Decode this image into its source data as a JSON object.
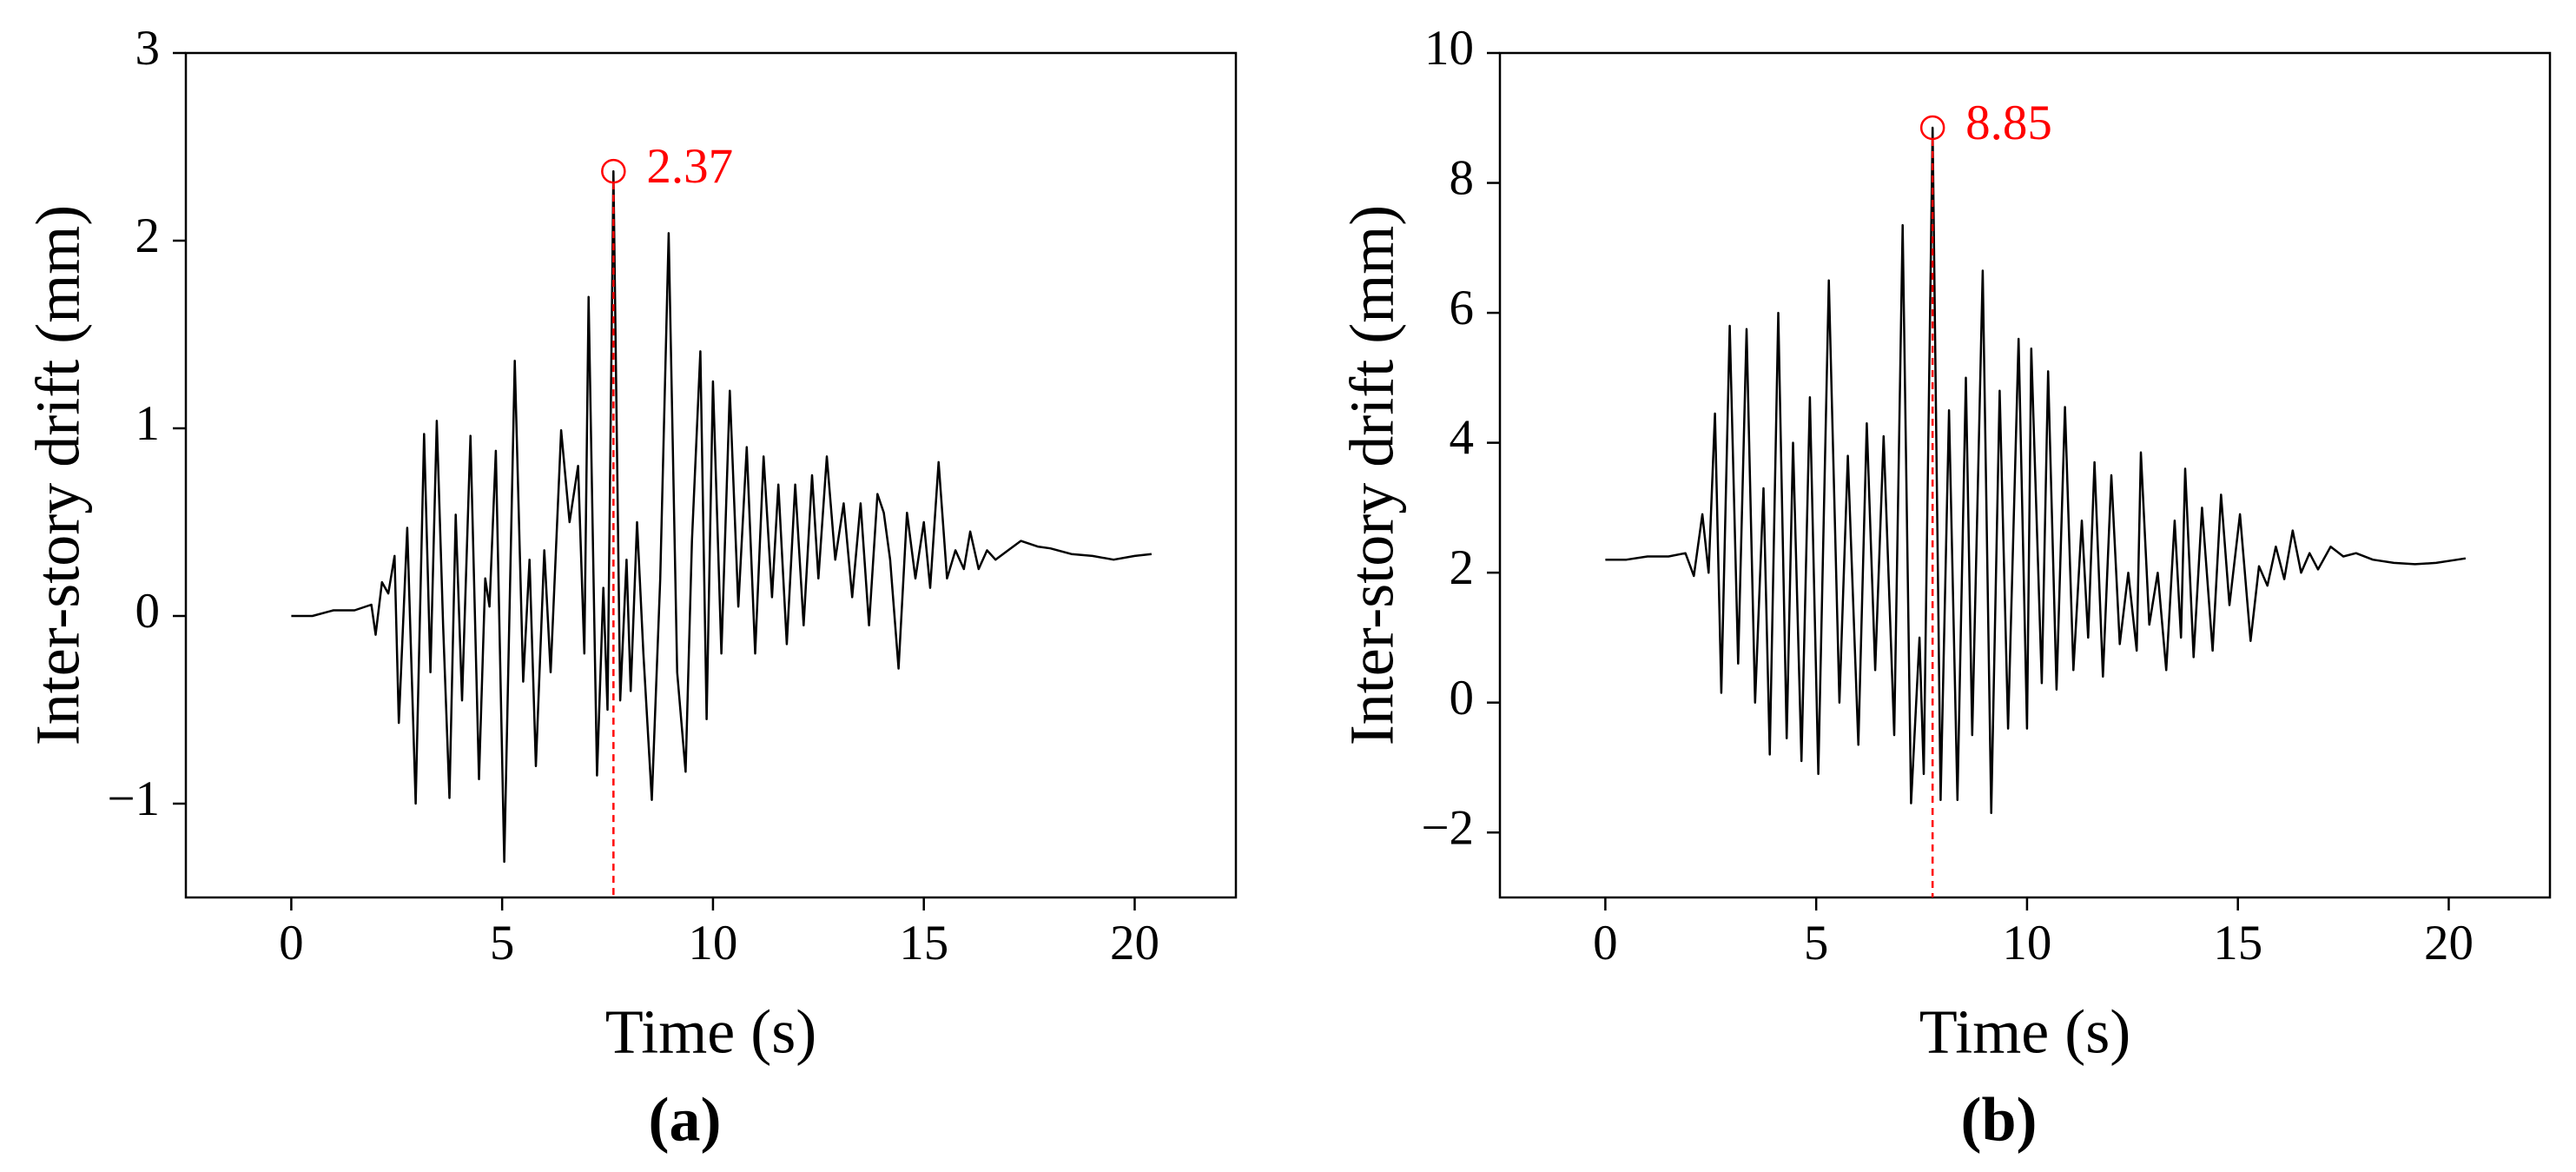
{
  "chart_data": [
    {
      "type": "line",
      "label": "(a)",
      "x_label": "Time (s)",
      "y_label": "Inter-story drift (mm)",
      "color": "#000000",
      "xlim": [
        -2.5,
        22.4
      ],
      "ylim": [
        -1.5,
        3
      ],
      "xticks": [
        0,
        5,
        10,
        15,
        20
      ],
      "yticks": [
        {
          "value": -1,
          "label": "−1"
        },
        0,
        1,
        2,
        3
      ],
      "annotation": {
        "x": 7.64,
        "y": 2.37,
        "color": "#ff0000"
      },
      "x": [
        0,
        0.5,
        1.0,
        1.5,
        1.9,
        2.0,
        2.15,
        2.3,
        2.45,
        2.55,
        2.75,
        2.95,
        3.15,
        3.3,
        3.45,
        3.6,
        3.75,
        3.9,
        4.05,
        4.25,
        4.45,
        4.6,
        4.7,
        4.85,
        5.05,
        5.3,
        5.5,
        5.65,
        5.8,
        6.0,
        6.15,
        6.4,
        6.6,
        6.8,
        6.95,
        7.05,
        7.25,
        7.4,
        7.5,
        7.64,
        7.8,
        7.95,
        8.05,
        8.2,
        8.35,
        8.55,
        8.75,
        8.95,
        9.15,
        9.35,
        9.5,
        9.7,
        9.85,
        10.0,
        10.2,
        10.4,
        10.6,
        10.8,
        11.0,
        11.2,
        11.4,
        11.55,
        11.75,
        11.95,
        12.15,
        12.35,
        12.5,
        12.7,
        12.9,
        13.1,
        13.3,
        13.5,
        13.7,
        13.9,
        14.05,
        14.2,
        14.4,
        14.6,
        14.8,
        15.0,
        15.15,
        15.35,
        15.55,
        15.75,
        15.95,
        16.1,
        16.3,
        16.5,
        16.7,
        17.0,
        17.3,
        17.7,
        18.0,
        18.5,
        19.0,
        19.5,
        20.0,
        20.4
      ],
      "values": [
        0,
        0,
        0.03,
        0.03,
        0.06,
        -0.1,
        0.18,
        0.12,
        0.32,
        -0.57,
        0.47,
        -1.0,
        0.97,
        -0.3,
        1.04,
        -0.05,
        -0.97,
        0.54,
        -0.45,
        0.96,
        -0.87,
        0.2,
        0.05,
        0.88,
        -1.31,
        1.36,
        -0.35,
        0.3,
        -0.8,
        0.35,
        -0.3,
        0.99,
        0.5,
        0.8,
        -0.2,
        1.7,
        -0.85,
        0.15,
        -0.5,
        2.37,
        -0.45,
        0.3,
        -0.4,
        0.5,
        -0.2,
        -0.98,
        0.2,
        2.04,
        -0.3,
        -0.83,
        0.4,
        1.41,
        -0.55,
        1.25,
        -0.2,
        1.2,
        0.05,
        0.9,
        -0.2,
        0.85,
        0.1,
        0.7,
        -0.15,
        0.7,
        -0.05,
        0.75,
        0.2,
        0.85,
        0.3,
        0.6,
        0.1,
        0.6,
        -0.05,
        0.65,
        0.55,
        0.3,
        -0.28,
        0.55,
        0.2,
        0.5,
        0.15,
        0.82,
        0.2,
        0.35,
        0.25,
        0.45,
        0.25,
        0.35,
        0.3,
        0.35,
        0.4,
        0.37,
        0.36,
        0.33,
        0.32,
        0.3,
        0.32,
        0.33
      ]
    },
    {
      "type": "line",
      "label": "(b)",
      "x_label": "Time (s)",
      "y_label": "Inter-story drift (mm)",
      "color": "#000000",
      "xlim": [
        -2.5,
        22.4
      ],
      "ylim": [
        -3,
        10
      ],
      "xticks": [
        0,
        5,
        10,
        15,
        20
      ],
      "yticks": [
        {
          "value": -2,
          "label": "−2"
        },
        0,
        2,
        4,
        6,
        8,
        10
      ],
      "annotation": {
        "x": 7.76,
        "y": 8.85,
        "color": "#ff0000"
      },
      "x": [
        0,
        0.5,
        1.0,
        1.5,
        1.9,
        2.1,
        2.3,
        2.45,
        2.6,
        2.75,
        2.95,
        3.15,
        3.35,
        3.55,
        3.75,
        3.9,
        4.1,
        4.3,
        4.45,
        4.65,
        4.85,
        5.05,
        5.3,
        5.55,
        5.75,
        6.0,
        6.2,
        6.4,
        6.6,
        6.85,
        7.05,
        7.25,
        7.45,
        7.55,
        7.76,
        7.95,
        8.15,
        8.35,
        8.55,
        8.7,
        8.95,
        9.15,
        9.35,
        9.55,
        9.8,
        10.0,
        10.1,
        10.35,
        10.5,
        10.7,
        10.9,
        11.1,
        11.3,
        11.45,
        11.6,
        11.8,
        12.0,
        12.2,
        12.4,
        12.6,
        12.7,
        12.9,
        13.1,
        13.3,
        13.5,
        13.65,
        13.75,
        13.95,
        14.15,
        14.4,
        14.6,
        14.8,
        15.05,
        15.3,
        15.5,
        15.7,
        15.9,
        16.1,
        16.3,
        16.5,
        16.7,
        16.9,
        17.2,
        17.5,
        17.8,
        18.2,
        18.7,
        19.2,
        19.7,
        20.2,
        20.4
      ],
      "values": [
        2.2,
        2.2,
        2.25,
        2.25,
        2.3,
        1.95,
        2.9,
        2.0,
        4.45,
        0.15,
        5.8,
        0.6,
        5.75,
        0.0,
        3.3,
        -0.8,
        6.0,
        -0.55,
        4.0,
        -0.9,
        4.7,
        -1.1,
        6.5,
        0.0,
        3.8,
        -0.65,
        4.3,
        0.5,
        4.1,
        -0.5,
        7.35,
        -1.55,
        1.0,
        -1.1,
        8.85,
        -1.5,
        4.5,
        -1.5,
        5.0,
        -0.5,
        6.65,
        -1.7,
        4.8,
        -0.4,
        5.6,
        -0.4,
        5.45,
        0.3,
        5.1,
        0.2,
        4.55,
        0.5,
        2.8,
        1.0,
        3.7,
        0.4,
        3.5,
        0.9,
        2.0,
        0.8,
        3.85,
        1.2,
        2.0,
        0.5,
        2.8,
        1.0,
        3.6,
        0.7,
        3.0,
        0.8,
        3.2,
        1.5,
        2.9,
        0.95,
        2.1,
        1.8,
        2.4,
        1.9,
        2.65,
        2.0,
        2.3,
        2.05,
        2.4,
        2.25,
        2.3,
        2.2,
        2.15,
        2.13,
        2.15,
        2.2,
        2.22
      ]
    }
  ]
}
